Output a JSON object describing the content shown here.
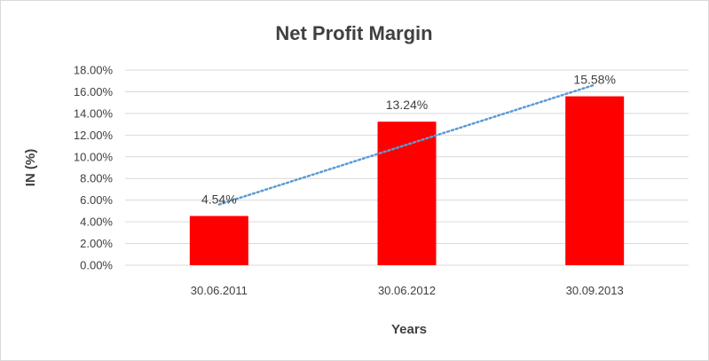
{
  "chart_data": {
    "type": "bar",
    "title": "Net Profit Margin",
    "xlabel": "Years",
    "ylabel": "IN (%)",
    "categories": [
      "30.06.2011",
      "30.06.2012",
      "30.09.2013"
    ],
    "values": [
      4.54,
      13.24,
      15.58
    ],
    "data_labels": [
      "4.54%",
      "13.24%",
      "15.58%"
    ],
    "ylim": [
      0,
      18
    ],
    "yticks": [
      0,
      2,
      4,
      6,
      8,
      10,
      12,
      14,
      16,
      18
    ],
    "ytick_labels": [
      "0.00%",
      "2.00%",
      "4.00%",
      "6.00%",
      "8.00%",
      "10.00%",
      "12.00%",
      "14.00%",
      "16.00%",
      "18.00%"
    ],
    "grid": true,
    "legend": "none",
    "trendline": {
      "type": "linear",
      "style": "dotted"
    },
    "colors": {
      "bar": "#ff0000",
      "trendline": "#5b9bd5",
      "grid": "#d9d9d9",
      "text": "#404040"
    }
  }
}
